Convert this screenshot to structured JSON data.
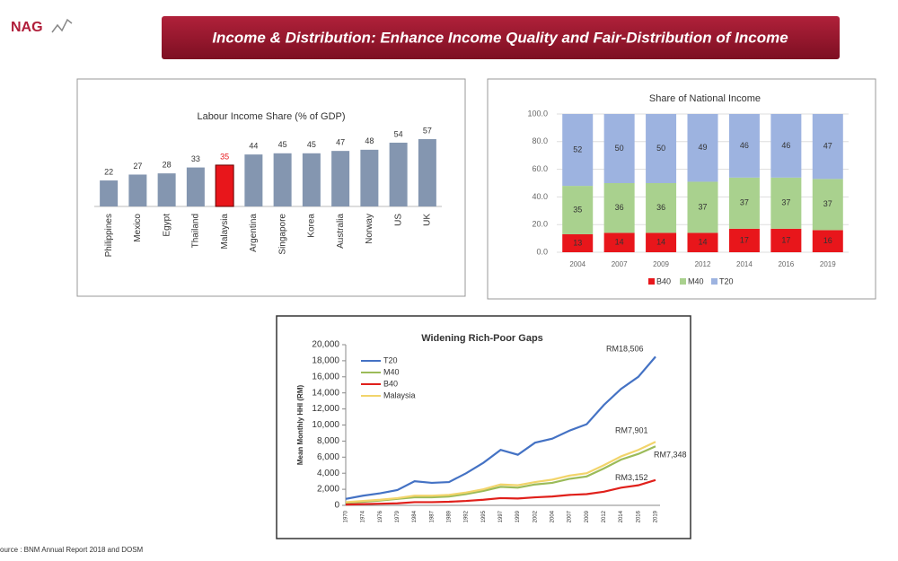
{
  "header": {
    "logo": "NAG",
    "title": "Income & Distribution: Enhance Income Quality and Fair-Distribution of Income"
  },
  "chart_data": [
    {
      "type": "bar",
      "title": "Labour Income Share (% of GDP)",
      "categories": [
        "Philippines",
        "Mexico",
        "Egypt",
        "Thailand",
        "Malaysia",
        "Argentina",
        "Singapore",
        "Korea",
        "Australia",
        "Norway",
        "US",
        "UK"
      ],
      "values": [
        22,
        27,
        28,
        33,
        35,
        44,
        45,
        45,
        47,
        48,
        54,
        57
      ],
      "colors": [
        "#8496b0",
        "#8496b0",
        "#8496b0",
        "#8496b0",
        "#e8161b",
        "#8496b0",
        "#8496b0",
        "#8496b0",
        "#8496b0",
        "#8496b0",
        "#8496b0",
        "#8496b0"
      ]
    },
    {
      "type": "stacked-bar",
      "title": "Share of National Income",
      "categories": [
        "2004",
        "2007",
        "2009",
        "2012",
        "2014",
        "2016",
        "2019"
      ],
      "series": [
        {
          "name": "B40",
          "color": "#e8161b",
          "values": [
            13,
            14,
            14,
            14,
            17,
            17,
            16
          ]
        },
        {
          "name": "M40",
          "color": "#a9d18e",
          "values": [
            35,
            36,
            36,
            37,
            37,
            37,
            37
          ]
        },
        {
          "name": "T20",
          "color": "#9db3e0",
          "values": [
            52,
            50,
            50,
            49,
            46,
            46,
            47
          ]
        }
      ],
      "ylim": [
        0,
        100
      ],
      "yticks": [
        {
          "value": 0,
          "label": "0.0"
        },
        {
          "value": 20,
          "label": "20.0"
        },
        {
          "value": 40,
          "label": "40.0"
        },
        {
          "value": 60,
          "label": "60.0"
        },
        {
          "value": 80,
          "label": "80.0"
        },
        {
          "value": 100,
          "label": "100.0"
        }
      ],
      "legend": "bottom"
    },
    {
      "type": "line",
      "title": "Widening Rich-Poor Gaps",
      "y_label": "Mean Monthly HHI (RM)",
      "categories": [
        "1970",
        "1974",
        "1976",
        "1979",
        "1984",
        "1987",
        "1989",
        "1992",
        "1995",
        "1997",
        "1999",
        "2002",
        "2004",
        "2007",
        "2009",
        "2012",
        "2014",
        "2016",
        "2019"
      ],
      "series": [
        {
          "name": "T20",
          "color": "#4472c4",
          "values": [
            800,
            1200,
            1500,
            1900,
            3000,
            2800,
            2900,
            4000,
            5300,
            6900,
            6300,
            7800,
            8300,
            9300,
            10100,
            12500,
            14500,
            16000,
            18506
          ],
          "end_label": "RM18,506"
        },
        {
          "name": "M40",
          "color": "#9bbb59",
          "values": [
            300,
            450,
            600,
            800,
            1000,
            1000,
            1100,
            1400,
            1800,
            2300,
            2200,
            2600,
            2800,
            3300,
            3600,
            4600,
            5700,
            6400,
            7348
          ],
          "end_label": "RM7,348"
        },
        {
          "name": "B40",
          "color": "#e0201b",
          "values": [
            100,
            150,
            200,
            250,
            400,
            400,
            450,
            550,
            700,
            900,
            850,
            1000,
            1100,
            1300,
            1400,
            1700,
            2200,
            2500,
            3152
          ],
          "end_label": "RM3,152"
        },
        {
          "name": "Malaysia",
          "color": "#f2d46b",
          "values": [
            400,
            550,
            700,
            900,
            1200,
            1200,
            1300,
            1600,
            2000,
            2600,
            2500,
            2900,
            3200,
            3700,
            4000,
            5000,
            6100,
            6900,
            7901
          ],
          "end_label": "RM7,901"
        }
      ],
      "ylim": [
        0,
        20000
      ],
      "yticks": [
        0,
        {
          "value": 2000,
          "label": "2,000"
        },
        {
          "value": 4000,
          "label": "4,000"
        },
        {
          "value": 6000,
          "label": "6,000"
        },
        {
          "value": 8000,
          "label": "8,000"
        },
        {
          "value": 10000,
          "label": "10,000"
        },
        {
          "value": 12000,
          "label": "12,000"
        },
        {
          "value": 14000,
          "label": "14,000"
        },
        {
          "value": 16000,
          "label": "16,000"
        },
        {
          "value": 18000,
          "label": "18,000"
        },
        {
          "value": 20000,
          "label": "20,000"
        }
      ],
      "legend": "upper left"
    }
  ],
  "source": "ource : BNM Annual Report 2018 and DOSM"
}
